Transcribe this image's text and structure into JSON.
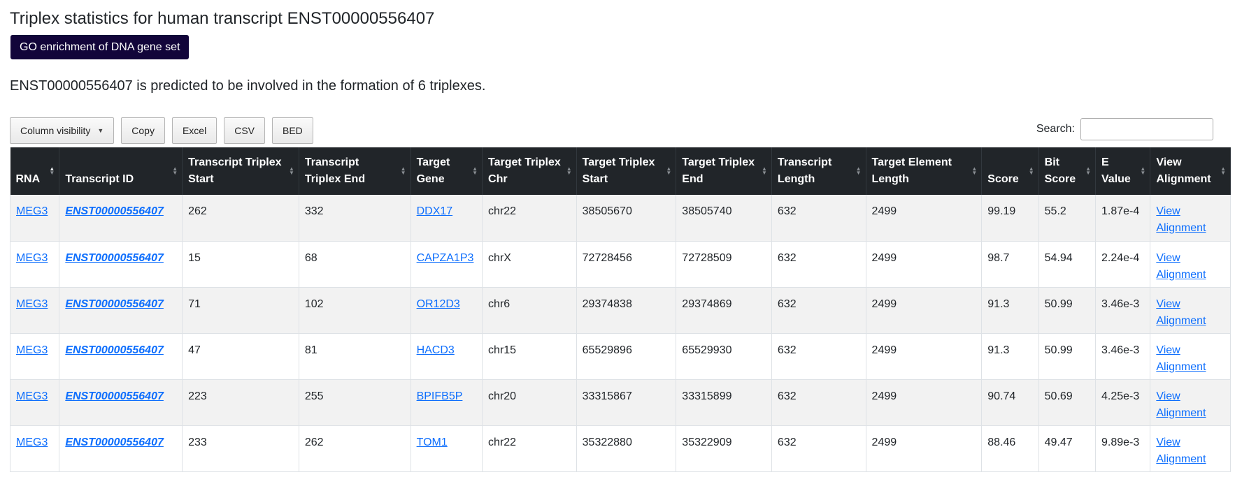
{
  "page": {
    "title": "Triplex statistics for human transcript ENST00000556407",
    "go_button_label": "GO enrichment of DNA gene set",
    "summary": "ENST00000556407 is predicted to be involved in the formation of 6 triplexes."
  },
  "toolbar": {
    "column_visibility_label": "Column visibility",
    "copy_label": "Copy",
    "excel_label": "Excel",
    "csv_label": "CSV",
    "bed_label": "BED"
  },
  "search": {
    "label": "Search:",
    "value": "",
    "placeholder": ""
  },
  "table": {
    "headers": {
      "rna": "RNA",
      "transcript_id": "Transcript ID",
      "transcript_triplex_start": "Transcript Triplex Start",
      "transcript_triplex_end": "Transcript Triplex End",
      "target_gene": "Target Gene",
      "target_triplex_chr": "Target Triplex Chr",
      "target_triplex_start": "Target Triplex Start",
      "target_triplex_end": "Target Triplex End",
      "transcript_length": "Transcript Length",
      "target_element_length": "Target Element Length",
      "score": "Score",
      "bit_score": "Bit Score",
      "e_value": "E Value",
      "view_alignment": "View Alignment"
    },
    "sorted_column": "rna",
    "rows": [
      {
        "rna": "MEG3",
        "transcript_id": "ENST00000556407",
        "ts": "262",
        "te": "332",
        "gene": "DDX17",
        "chr": "chr22",
        "gs": "38505670",
        "ge": "38505740",
        "tl": "632",
        "el": "2499",
        "score": "99.19",
        "bit": "55.2",
        "ev": "1.87e-4",
        "view": "View Alignment"
      },
      {
        "rna": "MEG3",
        "transcript_id": "ENST00000556407",
        "ts": "15",
        "te": "68",
        "gene": "CAPZA1P3",
        "chr": "chrX",
        "gs": "72728456",
        "ge": "72728509",
        "tl": "632",
        "el": "2499",
        "score": "98.7",
        "bit": "54.94",
        "ev": "2.24e-4",
        "view": "View Alignment"
      },
      {
        "rna": "MEG3",
        "transcript_id": "ENST00000556407",
        "ts": "71",
        "te": "102",
        "gene": "OR12D3",
        "chr": "chr6",
        "gs": "29374838",
        "ge": "29374869",
        "tl": "632",
        "el": "2499",
        "score": "91.3",
        "bit": "50.99",
        "ev": "3.46e-3",
        "view": "View Alignment"
      },
      {
        "rna": "MEG3",
        "transcript_id": "ENST00000556407",
        "ts": "47",
        "te": "81",
        "gene": "HACD3",
        "chr": "chr15",
        "gs": "65529896",
        "ge": "65529930",
        "tl": "632",
        "el": "2499",
        "score": "91.3",
        "bit": "50.99",
        "ev": "3.46e-3",
        "view": "View Alignment"
      },
      {
        "rna": "MEG3",
        "transcript_id": "ENST00000556407",
        "ts": "223",
        "te": "255",
        "gene": "BPIFB5P",
        "chr": "chr20",
        "gs": "33315867",
        "ge": "33315899",
        "tl": "632",
        "el": "2499",
        "score": "90.74",
        "bit": "50.69",
        "ev": "4.25e-3",
        "view": "View Alignment"
      },
      {
        "rna": "MEG3",
        "transcript_id": "ENST00000556407",
        "ts": "233",
        "te": "262",
        "gene": "TOM1",
        "chr": "chr22",
        "gs": "35322880",
        "ge": "35322909",
        "tl": "632",
        "el": "2499",
        "score": "88.46",
        "bit": "49.47",
        "ev": "9.89e-3",
        "view": "View Alignment"
      }
    ]
  }
}
